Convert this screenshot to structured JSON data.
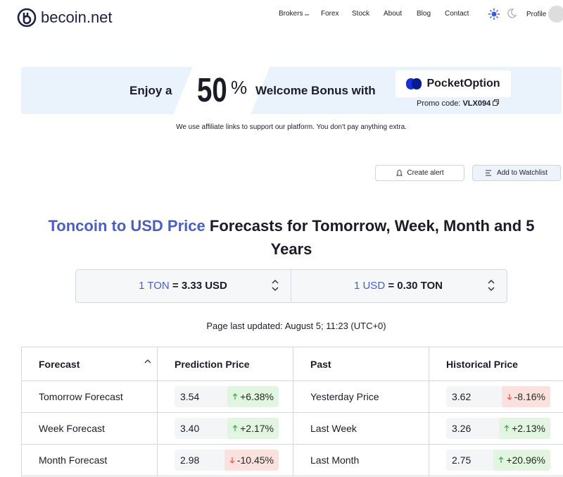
{
  "header": {
    "logo": "becoin.net",
    "nav": [
      "Brokers",
      "Forex",
      "Stock",
      "About",
      "Blog",
      "Contact"
    ],
    "profile": "Profile"
  },
  "banner": {
    "lead": "Enjoy a",
    "percent": "50",
    "percent_sign": "%",
    "tail": "Welcome Bonus with",
    "brand": "PocketOption",
    "promo_label": "Promo code:",
    "promo_code": "VLX094"
  },
  "disclaimer": "We use affiliate links to support our platform. You don't pay anything extra.",
  "actions": [
    "Create alert",
    "Add to Watchlist"
  ],
  "title": {
    "highlight": "Toncoin to USD Price",
    "rest": "Forecasts for Tomorrow, Week, Month and 5 Years"
  },
  "converter": [
    {
      "from": "1 TON",
      "to": "= 3.33 USD"
    },
    {
      "from": "1 USD",
      "to": "= 0.30 TON"
    }
  ],
  "updated": "Page last updated: August 5; 11:23 (UTC+0)",
  "table": {
    "headers": [
      "Forecast",
      "Prediction Price",
      "Past",
      "Historical Price"
    ],
    "rows": [
      {
        "forecast": "Tomorrow Forecast",
        "price": "3.54",
        "change": "+6.38%",
        "past": "Yesterday Price",
        "hist": "3.62",
        "hist_change": "-8.16%"
      },
      {
        "forecast": "Week Forecast",
        "price": "3.40",
        "change": "+2.17%",
        "past": "Last Week",
        "hist": "3.26",
        "hist_change": "+2.13%"
      },
      {
        "forecast": "Month Forecast",
        "price": "2.98",
        "change": "-10.45%",
        "past": "Last Month",
        "hist": "2.75",
        "hist_change": "+20.96%"
      }
    ]
  }
}
